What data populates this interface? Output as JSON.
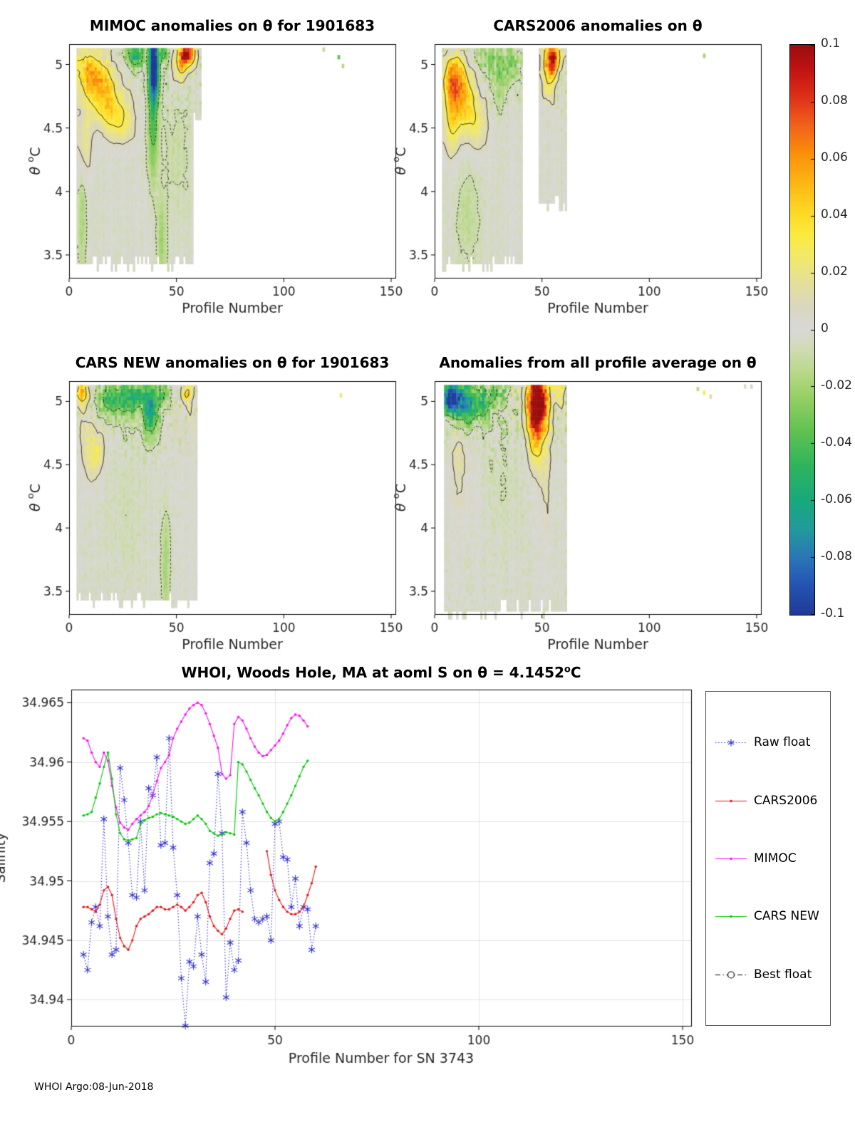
{
  "figure": {
    "footer": "WHOI Argo:08-Jun-2018"
  },
  "axis_labels": {
    "heatmap_x": "Profile Number",
    "heatmap_y_theta": "θ",
    "heatmap_y_sup": "o",
    "heatmap_y_unit": "C",
    "line_y": "Salinity"
  },
  "colorbar": {
    "min": -0.1,
    "max": 0.1,
    "tick_labels": [
      "0.1",
      "0.08",
      "0.06",
      "0.04",
      "0.02",
      "0",
      "-0.02",
      "-0.04",
      "-0.06",
      "-0.08",
      "-0.1"
    ],
    "stops": [
      [
        0,
        "#203a96"
      ],
      [
        0.05,
        "#2353b2"
      ],
      [
        0.1,
        "#2a76b8"
      ],
      [
        0.15,
        "#209b9b"
      ],
      [
        0.2,
        "#18a97c"
      ],
      [
        0.26,
        "#2eb45c"
      ],
      [
        0.32,
        "#5fc150"
      ],
      [
        0.38,
        "#95cf64"
      ],
      [
        0.43,
        "#bcd98e"
      ],
      [
        0.47,
        "#d2dab8"
      ],
      [
        0.5,
        "#d8d8d6"
      ],
      [
        0.54,
        "#dad6be"
      ],
      [
        0.58,
        "#e4df9b"
      ],
      [
        0.63,
        "#f2e967"
      ],
      [
        0.67,
        "#fbe93b"
      ],
      [
        0.71,
        "#fdd722"
      ],
      [
        0.76,
        "#fdb513"
      ],
      [
        0.81,
        "#fb8f0a"
      ],
      [
        0.86,
        "#f2611b"
      ],
      [
        0.91,
        "#dd2f18"
      ],
      [
        0.96,
        "#bf1111"
      ],
      [
        1,
        "#9a0e0e"
      ]
    ]
  },
  "chart_data": [
    {
      "type": "heatmap",
      "title": "MIMOC anomalies on θ  for 1901683",
      "xlabel": "Profile Number",
      "ylabel": "θ °C",
      "xlim": [
        0,
        152
      ],
      "ylim": [
        3.32,
        5.16
      ],
      "xticks": [
        0,
        50,
        100,
        150
      ],
      "yticks": [
        3.5,
        4,
        4.5,
        5
      ],
      "value_range": [
        -0.1,
        0.1
      ],
      "data_extent": {
        "profiles": [
          2.5,
          62.5
        ],
        "theta": [
          3.34,
          5.13
        ]
      },
      "segments": [
        [
          3,
          58,
          3.42
        ],
        [
          58,
          61.5,
          4.55
        ]
      ],
      "base": -0.002,
      "seed": 7,
      "noise": 1,
      "features": [
        [
          10,
          4.95,
          5,
          0.12,
          0.05
        ],
        [
          16,
          4.75,
          6,
          0.15,
          0.045
        ],
        [
          24,
          4.55,
          5,
          0.12,
          0.03
        ],
        [
          7,
          4.35,
          2.5,
          0.2,
          0.025
        ],
        [
          39.5,
          5.0,
          1.6,
          0.18,
          -0.11
        ],
        [
          39,
          4.6,
          1.8,
          0.35,
          -0.04
        ],
        [
          55,
          5.08,
          2.2,
          0.06,
          0.1
        ],
        [
          52,
          5.0,
          2,
          0.1,
          0.04
        ],
        [
          31,
          5.07,
          3,
          0.06,
          -0.055
        ],
        [
          44,
          5.09,
          1.2,
          0.05,
          -0.04
        ],
        [
          6,
          3.9,
          1.5,
          0.4,
          -0.018
        ],
        [
          43,
          3.6,
          1.5,
          0.25,
          -0.02
        ],
        [
          50,
          4.3,
          5,
          0.4,
          -0.008
        ]
      ],
      "specks": [
        [
          125,
          5.04,
          -0.035
        ],
        [
          127,
          4.97,
          -0.015
        ],
        [
          118,
          5.1,
          -0.012
        ]
      ]
    },
    {
      "type": "heatmap",
      "title": "CARS2006 anomalies on θ",
      "xlabel": "Profile Number",
      "ylabel": "θ °C",
      "xlim": [
        0,
        152
      ],
      "ylim": [
        3.32,
        5.16
      ],
      "xticks": [
        0,
        50,
        100,
        150
      ],
      "yticks": [
        3.5,
        4,
        4.5,
        5
      ],
      "value_range": [
        -0.1,
        0.1
      ],
      "data_extent": {
        "profiles": [
          2.5,
          62.5
        ],
        "theta": [
          3.34,
          5.13
        ]
      },
      "segments": [
        [
          3,
          40.5,
          3.42
        ],
        [
          48.5,
          62,
          3.9
        ]
      ],
      "base": -0.002,
      "seed": 13,
      "noise": 1,
      "features": [
        [
          9,
          4.9,
          4,
          0.13,
          0.06
        ],
        [
          14,
          4.7,
          5,
          0.15,
          0.04
        ],
        [
          8,
          4.55,
          3,
          0.2,
          0.03
        ],
        [
          20,
          4.5,
          4,
          0.15,
          0.02
        ],
        [
          55,
          5.05,
          2.5,
          0.09,
          0.085
        ],
        [
          53,
          4.88,
          2,
          0.12,
          0.03
        ],
        [
          30,
          4.9,
          3,
          0.15,
          -0.02
        ],
        [
          36,
          5.0,
          2,
          0.1,
          -0.028
        ],
        [
          25,
          5.05,
          3,
          0.07,
          -0.02
        ],
        [
          15,
          3.8,
          4,
          0.3,
          -0.01
        ]
      ],
      "specks": [
        [
          125,
          5.05,
          -0.02
        ]
      ]
    },
    {
      "type": "heatmap",
      "title": "CARS NEW anomalies on θ for 1901683",
      "xlabel": "Profile Number",
      "ylabel": "θ °C",
      "xlim": [
        0,
        152
      ],
      "ylim": [
        3.32,
        5.16
      ],
      "xticks": [
        0,
        50,
        100,
        150
      ],
      "yticks": [
        3.5,
        4,
        4.5,
        5
      ],
      "value_range": [
        -0.1,
        0.1
      ],
      "data_extent": {
        "profiles": [
          2.5,
          62.5
        ],
        "theta": [
          3.34,
          5.13
        ]
      },
      "segments": [
        [
          3,
          60,
          3.42
        ]
      ],
      "base": -0.002,
      "seed": 21,
      "noise": 1.2,
      "features": [
        [
          22,
          5.02,
          6,
          0.09,
          -0.05
        ],
        [
          31,
          5.05,
          3,
          0.07,
          -0.032
        ],
        [
          38,
          4.95,
          2.5,
          0.15,
          -0.065
        ],
        [
          44,
          5.05,
          2,
          0.07,
          -0.03
        ],
        [
          6,
          5.07,
          2.5,
          0.06,
          0.05
        ],
        [
          55,
          5.07,
          1.5,
          0.05,
          0.045
        ],
        [
          11,
          4.55,
          3,
          0.15,
          0.02
        ],
        [
          14,
          4.62,
          2,
          0.1,
          0.015
        ],
        [
          8,
          4.8,
          2.5,
          0.2,
          0.012
        ],
        [
          45,
          3.7,
          1.5,
          0.3,
          -0.018
        ],
        [
          25,
          4.1,
          8,
          0.4,
          -0.004
        ]
      ],
      "specks": [
        [
          126,
          5.03,
          0.025
        ]
      ]
    },
    {
      "type": "heatmap",
      "title": "Anomalies from all profile average on θ",
      "xlabel": "Profile Number",
      "ylabel": "θ °C",
      "xlim": [
        0,
        152
      ],
      "ylim": [
        3.32,
        5.16
      ],
      "xticks": [
        0,
        50,
        100,
        150
      ],
      "yticks": [
        3.5,
        4,
        4.5,
        5
      ],
      "value_range": [
        -0.1,
        0.1
      ],
      "data_extent": {
        "profiles": [
          2.5,
          62.5
        ],
        "theta": [
          3.28,
          5.13
        ]
      },
      "segments": [
        [
          4.5,
          62,
          3.34
        ]
      ],
      "base": -0.002,
      "seed": 29,
      "noise": 1.5,
      "features": [
        [
          8,
          5.03,
          3,
          0.09,
          -0.1
        ],
        [
          14,
          4.97,
          4,
          0.12,
          -0.055
        ],
        [
          22,
          5.0,
          4,
          0.1,
          -0.035
        ],
        [
          30,
          5.06,
          3,
          0.06,
          -0.02
        ],
        [
          48,
          5.0,
          3.5,
          0.16,
          0.105
        ],
        [
          47,
          4.8,
          2.5,
          0.25,
          0.045
        ],
        [
          52,
          4.55,
          1.8,
          0.5,
          0.015
        ],
        [
          12,
          4.5,
          4,
          0.3,
          0.012
        ],
        [
          33,
          4.45,
          8,
          0.4,
          -0.005
        ],
        [
          58,
          5.07,
          1.5,
          0.06,
          0.035
        ]
      ],
      "specks": [
        [
          125,
          5.05,
          0.03
        ],
        [
          122,
          5.08,
          -0.015
        ],
        [
          144,
          5.1,
          0.002
        ],
        [
          147,
          5.1,
          -0.004
        ],
        [
          128,
          5.02,
          0.012
        ]
      ]
    },
    {
      "type": "line",
      "title_prefix": "WHOI, Woods Hole, MA at aoml S on θ = 4.1452",
      "title_sup": "o",
      "title_unit": "C",
      "xlabel": "Profile Number for SN 3743",
      "ylabel": "Salinity",
      "xlim": [
        0,
        152.1
      ],
      "ylim": [
        34.9378,
        34.9661
      ],
      "xticks": [
        0,
        50,
        100,
        150
      ],
      "yticks": [
        34.94,
        34.945,
        34.95,
        34.955,
        34.96,
        34.965
      ],
      "ytick_labels": [
        "34.94",
        "34.945",
        "34.95",
        "34.955",
        "34.96",
        "34.965"
      ],
      "grid": true,
      "series": [
        {
          "name": "Raw float",
          "color": "#3030d0",
          "line": "dotted",
          "marker": "asterisk",
          "x": [
            3,
            4,
            5,
            6,
            7,
            8,
            9,
            10,
            11,
            12,
            13,
            14,
            15,
            16,
            17,
            18,
            19,
            20,
            21,
            22,
            23,
            24,
            25,
            26,
            27,
            28,
            29,
            30,
            31,
            32,
            33,
            34,
            35,
            36,
            37,
            38,
            39,
            40,
            41,
            42,
            43,
            44,
            45,
            46,
            47,
            48,
            49,
            50,
            51,
            52,
            53,
            54,
            55,
            56,
            57,
            58,
            59,
            60
          ],
          "y": [
            34.9438,
            34.9425,
            34.9465,
            34.9478,
            34.9462,
            34.9552,
            34.947,
            34.9438,
            34.9442,
            34.9595,
            34.9568,
            34.9532,
            34.9488,
            34.9486,
            34.955,
            34.9492,
            34.9578,
            34.9572,
            34.9604,
            34.953,
            34.9532,
            34.962,
            34.9528,
            34.9488,
            34.9418,
            34.9378,
            34.9432,
            34.9428,
            34.947,
            34.9438,
            34.9415,
            34.9515,
            34.9523,
            34.959,
            34.954,
            34.9402,
            34.9448,
            34.9425,
            34.9433,
            34.9558,
            34.9532,
            34.9492,
            34.9468,
            34.9465,
            34.9468,
            34.947,
            34.945,
            34.9548,
            34.955,
            34.952,
            34.9518,
            34.9478,
            34.9502,
            34.9462,
            34.9478,
            34.9476,
            34.9442,
            34.9462
          ]
        },
        {
          "name": "CARS2006",
          "color": "#e61414",
          "line": "solid",
          "marker": "dot",
          "x": [
            3,
            4,
            5,
            6,
            7,
            8,
            9,
            10,
            11,
            12,
            13,
            14,
            15,
            16,
            17,
            18,
            19,
            20,
            21,
            22,
            23,
            24,
            25,
            26,
            27,
            28,
            29,
            30,
            31,
            32,
            33,
            34,
            35,
            36,
            37,
            38,
            39,
            40,
            41,
            42,
            48,
            49,
            50,
            51,
            52,
            53,
            54,
            55,
            56,
            57,
            58,
            59,
            60
          ],
          "y": [
            34.9478,
            34.9478,
            34.9476,
            34.9474,
            34.948,
            34.9492,
            34.9495,
            34.9488,
            34.9468,
            34.9452,
            34.9445,
            34.9442,
            34.945,
            34.9462,
            34.9468,
            34.947,
            34.9472,
            34.9475,
            34.9478,
            34.9478,
            34.9476,
            34.9476,
            34.9478,
            34.948,
            34.9478,
            34.9475,
            34.9478,
            34.9482,
            34.9488,
            34.949,
            34.9482,
            34.947,
            34.9462,
            34.9458,
            34.9455,
            34.946,
            34.9468,
            34.9475,
            34.9476,
            34.9474,
            34.9525,
            34.9505,
            34.9492,
            34.9484,
            34.9478,
            34.9474,
            34.9472,
            34.9472,
            34.9474,
            34.9478,
            34.9488,
            34.9498,
            34.9512
          ]
        },
        {
          "name": "MIMOC",
          "color": "#f410f4",
          "line": "solid",
          "marker": "dot",
          "x": [
            3,
            4,
            5,
            6,
            7,
            8,
            9,
            10,
            11,
            12,
            13,
            14,
            15,
            16,
            17,
            18,
            19,
            20,
            21,
            22,
            23,
            24,
            25,
            26,
            27,
            28,
            29,
            30,
            31,
            32,
            33,
            34,
            35,
            36,
            37,
            38,
            39,
            40,
            41,
            42,
            43,
            44,
            45,
            46,
            47,
            48,
            49,
            50,
            51,
            52,
            53,
            54,
            55,
            56,
            57,
            58
          ],
          "y": [
            34.962,
            34.9618,
            34.9608,
            34.96,
            34.9596,
            34.9608,
            34.9601,
            34.958,
            34.9562,
            34.9549,
            34.9545,
            34.9543,
            34.9548,
            34.9552,
            34.9555,
            34.9558,
            34.9563,
            34.9572,
            34.9584,
            34.9595,
            34.96,
            34.9606,
            34.962,
            34.9628,
            34.9634,
            34.964,
            34.9645,
            34.9648,
            34.965,
            34.9648,
            34.9641,
            34.9632,
            34.9622,
            34.9612,
            34.959,
            34.9586,
            34.9589,
            34.9632,
            34.9638,
            34.9635,
            34.9628,
            34.962,
            34.9613,
            34.9608,
            34.9605,
            34.9606,
            34.961,
            34.9614,
            34.9618,
            34.9624,
            34.9631,
            34.9637,
            34.964,
            34.9639,
            34.9635,
            34.963
          ]
        },
        {
          "name": "CARS NEW",
          "color": "#00c800",
          "line": "solid",
          "marker": "dot",
          "x": [
            3,
            4,
            5,
            6,
            7,
            8,
            9,
            10,
            11,
            12,
            13,
            14,
            15,
            16,
            17,
            18,
            19,
            20,
            21,
            22,
            23,
            24,
            25,
            26,
            27,
            28,
            29,
            30,
            31,
            32,
            33,
            34,
            35,
            36,
            37,
            38,
            39,
            40,
            41,
            42,
            43,
            44,
            45,
            46,
            47,
            48,
            49,
            50,
            51,
            52,
            53,
            54,
            55,
            56,
            57,
            58
          ],
          "y": [
            34.9555,
            34.9556,
            34.9558,
            34.957,
            34.9582,
            34.9596,
            34.9608,
            34.9586,
            34.9556,
            34.954,
            34.9535,
            34.9534,
            34.9535,
            34.9536,
            34.9548,
            34.9551,
            34.9553,
            34.9554,
            34.9556,
            34.9557,
            34.9556,
            34.9555,
            34.9554,
            34.9552,
            34.955,
            34.9548,
            34.9549,
            34.9552,
            34.9555,
            34.9552,
            34.9548,
            34.9542,
            34.954,
            34.9538,
            34.9539,
            34.9541,
            34.954,
            34.9539,
            34.96,
            34.9598,
            34.9592,
            34.9585,
            34.9578,
            34.9572,
            34.9565,
            34.9558,
            34.9553,
            34.955,
            34.9552,
            34.9558,
            34.9565,
            34.9572,
            34.958,
            34.9588,
            34.9596,
            34.9601
          ]
        },
        {
          "name": "Best float",
          "color": "#000000",
          "line": "dashdot",
          "marker": "circle",
          "x": [],
          "y": []
        }
      ]
    }
  ]
}
